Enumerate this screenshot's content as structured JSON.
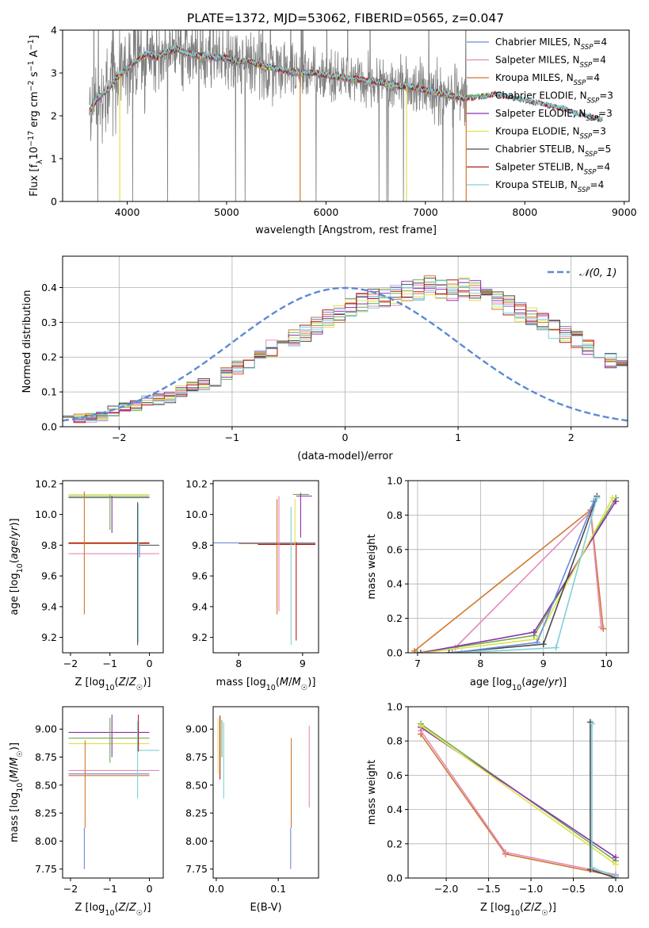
{
  "title": "PLATE=1372, MJD=53062, FIBERID=0565, z=0.047",
  "colors": {
    "Chabrier MILES": "#6a8cd8",
    "Salpeter MILES": "#e58ab8",
    "Kroupa MILES": "#d0782f",
    "Chabrier ELODIE": "#6cb04a",
    "Salpeter ELODIE": "#8e2fb0",
    "Kroupa ELODIE": "#e1e14a",
    "Chabrier STELIB": "#4a4a4a",
    "Salpeter STELIB": "#b01818",
    "Kroupa STELIB": "#7fd0d8",
    "data": "#808080",
    "normal_curve": "#5b8bd6"
  },
  "legend_models": [
    {
      "imf": "Chabrier MILES",
      "nssp": "4"
    },
    {
      "imf": "Salpeter MILES",
      "nssp": "4"
    },
    {
      "imf": "Kroupa MILES",
      "nssp": "4"
    },
    {
      "imf": "Chabrier ELODIE",
      "nssp": "3"
    },
    {
      "imf": "Salpeter ELODIE",
      "nssp": "3"
    },
    {
      "imf": "Kroupa ELODIE",
      "nssp": "3"
    },
    {
      "imf": "Chabrier STELIB",
      "nssp": "5"
    },
    {
      "imf": "Salpeter STELIB",
      "nssp": "4"
    },
    {
      "imf": "Kroupa STELIB",
      "nssp": "4"
    }
  ],
  "chart_data": [
    {
      "id": "spectrum",
      "type": "line",
      "xlabel": "wavelength [Angstrom, rest frame]",
      "ylabel": "Flux [f_λ 10^-17 erg cm^-2 s^-1 A^-1]",
      "xlim": [
        3350,
        9050
      ],
      "ylim": [
        0,
        4
      ],
      "xticks": [
        4000,
        5000,
        6000,
        7000,
        8000,
        9000
      ],
      "yticks": [
        0,
        1,
        2,
        3,
        4
      ],
      "continuum": [
        [
          3620,
          2.1
        ],
        [
          3700,
          2.4
        ],
        [
          3800,
          2.6
        ],
        [
          3900,
          2.9
        ],
        [
          4000,
          3.1
        ],
        [
          4100,
          3.3
        ],
        [
          4200,
          3.45
        ],
        [
          4300,
          3.35
        ],
        [
          4400,
          3.5
        ],
        [
          4500,
          3.55
        ],
        [
          4600,
          3.45
        ],
        [
          4700,
          3.4
        ],
        [
          4800,
          3.4
        ],
        [
          4900,
          3.35
        ],
        [
          5000,
          3.35
        ],
        [
          5100,
          3.25
        ],
        [
          5200,
          3.3
        ],
        [
          5300,
          3.2
        ],
        [
          5400,
          3.15
        ],
        [
          5500,
          3.1
        ],
        [
          5600,
          3.05
        ],
        [
          5700,
          3.0
        ],
        [
          5800,
          3.0
        ],
        [
          5900,
          3.0
        ],
        [
          6000,
          2.95
        ],
        [
          6100,
          2.9
        ],
        [
          6200,
          2.88
        ],
        [
          6300,
          2.85
        ],
        [
          6400,
          2.82
        ],
        [
          6500,
          2.8
        ],
        [
          6600,
          2.75
        ],
        [
          6700,
          2.7
        ],
        [
          6800,
          2.68
        ],
        [
          6900,
          2.65
        ],
        [
          7000,
          2.6
        ],
        [
          7100,
          2.55
        ],
        [
          7200,
          2.5
        ],
        [
          7300,
          2.45
        ],
        [
          7400,
          2.4
        ],
        [
          7500,
          2.42
        ],
        [
          7600,
          2.45
        ],
        [
          7700,
          2.5
        ],
        [
          7800,
          2.45
        ],
        [
          7900,
          2.4
        ],
        [
          8000,
          2.35
        ],
        [
          8100,
          2.3
        ],
        [
          8200,
          2.25
        ],
        [
          8300,
          2.2
        ],
        [
          8400,
          2.15
        ],
        [
          8500,
          2.05
        ],
        [
          8600,
          2.0
        ],
        [
          8700,
          1.95
        ],
        [
          8780,
          1.9
        ]
      ],
      "model_range": [
        3620,
        7420
      ],
      "data_range": [
        3620,
        7420
      ],
      "stelib_range": [
        3620,
        8780
      ]
    },
    {
      "id": "residuals",
      "type": "step",
      "xlabel": "(data-model)/error",
      "ylabel": "Normed distribution",
      "xlim": [
        -2.5,
        2.5
      ],
      "ylim": [
        0,
        0.49
      ],
      "xticks": [
        -2,
        -1,
        0,
        1,
        2
      ],
      "yticks": [
        0.0,
        0.1,
        0.2,
        0.3,
        0.4
      ],
      "legend": "𝒩(0, 1)",
      "bin_edges_start": -2.5,
      "bin_width": 0.1,
      "hist_base": [
        0.025,
        0.024,
        0.026,
        0.03,
        0.045,
        0.055,
        0.06,
        0.075,
        0.08,
        0.085,
        0.1,
        0.115,
        0.12,
        0.13,
        0.15,
        0.17,
        0.19,
        0.21,
        0.225,
        0.24,
        0.255,
        0.27,
        0.29,
        0.31,
        0.325,
        0.345,
        0.355,
        0.365,
        0.37,
        0.38,
        0.39,
        0.395,
        0.41,
        0.4,
        0.395,
        0.405,
        0.39,
        0.38,
        0.365,
        0.35,
        0.33,
        0.32,
        0.3,
        0.28,
        0.265,
        0.25,
        0.23,
        0.21,
        0.19,
        0.175,
        0.16,
        0.145,
        0.125,
        0.11,
        0.095,
        0.085,
        0.08,
        0.075,
        0.065,
        0.06,
        0.055,
        0.05,
        0.045,
        0.04,
        0.035,
        0.03,
        0.028,
        0.025,
        0.022,
        0.02
      ]
    },
    {
      "id": "z-age",
      "type": "errorbar",
      "xlabel": "Z [log10(Z/Z☉)]",
      "ylabel": "age  [log10(age/yr)]",
      "xlim": [
        -2.2,
        0.35
      ],
      "ylim": [
        9.1,
        10.22
      ],
      "xticks": [
        -2,
        -1,
        0
      ],
      "yticks": [
        9.2,
        9.4,
        9.6,
        9.8,
        10.0,
        10.2
      ],
      "hlines": [
        {
          "y": 10.12,
          "x0": -2.05,
          "x1": 0.0,
          "c": "Chabrier ELODIE"
        },
        {
          "y": 10.13,
          "x0": -2.05,
          "x1": 0.0,
          "c": "Kroupa ELODIE"
        },
        {
          "y": 10.11,
          "x0": -2.05,
          "x1": 0.0,
          "c": "Chabrier STELIB"
        },
        {
          "y": 9.81,
          "x0": -2.05,
          "x1": 0.0,
          "c": "Kroupa MILES"
        },
        {
          "y": 9.815,
          "x0": -2.05,
          "x1": 0.0,
          "c": "Salpeter STELIB"
        },
        {
          "y": 9.8,
          "x0": -0.3,
          "x1": 0.25,
          "c": "Chabrier STELIB"
        },
        {
          "y": 9.745,
          "x0": -2.05,
          "x1": 0.25,
          "c": "Salpeter MILES"
        }
      ],
      "vlines": [
        {
          "x": -1.65,
          "y0": 9.35,
          "y1": 10.15,
          "c": "Kroupa MILES"
        },
        {
          "x": -1.0,
          "y0": 9.9,
          "y1": 10.13,
          "c": "Chabrier ELODIE"
        },
        {
          "x": -0.95,
          "y0": 9.88,
          "y1": 10.12,
          "c": "Salpeter ELODIE"
        },
        {
          "x": -0.3,
          "y0": 9.15,
          "y1": 10.08,
          "c": "Chabrier STELIB"
        },
        {
          "x": -0.28,
          "y0": 9.17,
          "y1": 10.07,
          "c": "Kroupa STELIB"
        },
        {
          "x": -0.25,
          "y0": 9.72,
          "y1": 9.82,
          "c": "Chabrier MILES"
        }
      ]
    },
    {
      "id": "mass-age",
      "type": "errorbar",
      "xlabel": "mass [log10(M/M☉)]",
      "ylabel": "",
      "xlim": [
        7.6,
        9.25
      ],
      "ylim": [
        9.1,
        10.22
      ],
      "xticks": [
        8,
        9
      ],
      "yticks": [
        9.2,
        9.4,
        9.6,
        9.8,
        10.0,
        10.2
      ],
      "hlines": [
        {
          "y": 9.815,
          "x0": 7.6,
          "x1": 9.2,
          "c": "Chabrier MILES"
        },
        {
          "y": 9.81,
          "x0": 8.0,
          "x1": 9.2,
          "c": "Kroupa MILES"
        },
        {
          "y": 9.805,
          "x0": 8.3,
          "x1": 9.2,
          "c": "Salpeter STELIB"
        },
        {
          "y": 10.13,
          "x0": 8.85,
          "x1": 9.1,
          "c": "Chabrier ELODIE"
        },
        {
          "y": 10.12,
          "x0": 8.9,
          "x1": 9.15,
          "c": "Salpeter ELODIE"
        }
      ],
      "vlines": [
        {
          "x": 8.6,
          "y0": 9.35,
          "y1": 10.1,
          "c": "Kroupa MILES"
        },
        {
          "x": 8.63,
          "y0": 9.37,
          "y1": 10.12,
          "c": "Salpeter MILES"
        },
        {
          "x": 8.82,
          "y0": 9.15,
          "y1": 10.05,
          "c": "Kroupa STELIB"
        },
        {
          "x": 8.88,
          "y0": 9.8,
          "y1": 10.1,
          "c": "Kroupa ELODIE"
        },
        {
          "x": 8.97,
          "y0": 9.85,
          "y1": 10.14,
          "c": "Salpeter ELODIE"
        },
        {
          "x": 8.9,
          "y0": 9.18,
          "y1": 9.82,
          "c": "Salpeter STELIB"
        }
      ]
    },
    {
      "id": "age-weight",
      "type": "line",
      "xlabel": "age  [log10(age/yr)]",
      "ylabel": "mass weight",
      "xlim": [
        6.85,
        10.35
      ],
      "ylim": [
        0,
        1
      ],
      "xticks": [
        7,
        8,
        9,
        10
      ],
      "yticks": [
        0.0,
        0.2,
        0.4,
        0.6,
        0.8,
        1.0
      ],
      "series": [
        {
          "c": "Kroupa MILES",
          "x": [
            6.95,
            9.75,
            9.95
          ],
          "y": [
            0.01,
            0.83,
            0.14
          ]
        },
        {
          "c": "Salpeter MILES",
          "x": [
            7.6,
            9.75,
            9.92
          ],
          "y": [
            0.03,
            0.82,
            0.15
          ]
        },
        {
          "c": "Chabrier ELODIE",
          "x": [
            7.0,
            8.85,
            10.15
          ],
          "y": [
            0.0,
            0.1,
            0.9
          ]
        },
        {
          "c": "Salpeter ELODIE",
          "x": [
            7.05,
            8.85,
            10.15
          ],
          "y": [
            0.0,
            0.12,
            0.88
          ]
        },
        {
          "c": "Kroupa ELODIE",
          "x": [
            7.1,
            8.9,
            10.1
          ],
          "y": [
            0.0,
            0.08,
            0.9
          ]
        },
        {
          "c": "Chabrier STELIB",
          "x": [
            7.5,
            9.0,
            9.85
          ],
          "y": [
            0.0,
            0.05,
            0.91
          ]
        },
        {
          "c": "Kroupa STELIB",
          "x": [
            7.7,
            9.2,
            9.85
          ],
          "y": [
            0.0,
            0.03,
            0.9
          ]
        },
        {
          "c": "Chabrier MILES",
          "x": [
            7.55,
            8.9,
            9.8
          ],
          "y": [
            0.0,
            0.06,
            0.88
          ]
        }
      ]
    },
    {
      "id": "z-mass",
      "type": "errorbar",
      "xlabel": "Z [log10(Z/Z☉)]",
      "ylabel": "mass [log10(M/M☉)]",
      "xlim": [
        -2.2,
        0.35
      ],
      "ylim": [
        7.67,
        9.2
      ],
      "xticks": [
        -2,
        -1,
        0
      ],
      "yticks": [
        7.75,
        8.0,
        8.25,
        8.5,
        8.75,
        9.0
      ],
      "hlines": [
        {
          "y": 8.97,
          "x0": -2.05,
          "x1": 0.0,
          "c": "Salpeter ELODIE"
        },
        {
          "y": 8.92,
          "x0": -2.05,
          "x1": 0.0,
          "c": "Chabrier ELODIE"
        },
        {
          "y": 8.87,
          "x0": -2.05,
          "x1": 0.0,
          "c": "Kroupa ELODIE"
        },
        {
          "y": 8.81,
          "x0": -0.3,
          "x1": 0.25,
          "c": "Kroupa STELIB"
        },
        {
          "y": 8.63,
          "x0": -2.05,
          "x1": 0.25,
          "c": "Salpeter MILES"
        },
        {
          "y": 8.6,
          "x0": -2.05,
          "x1": 0.0,
          "c": "Chabrier MILES"
        },
        {
          "y": 8.585,
          "x0": -2.05,
          "x1": 0.0,
          "c": "Kroupa MILES"
        }
      ],
      "vlines": [
        {
          "x": -1.65,
          "y0": 7.75,
          "y1": 8.12,
          "c": "Chabrier MILES"
        },
        {
          "x": -1.63,
          "y0": 8.12,
          "y1": 8.9,
          "c": "Kroupa MILES"
        },
        {
          "x": -1.0,
          "y0": 8.7,
          "y1": 9.1,
          "c": "Chabrier ELODIE"
        },
        {
          "x": -0.95,
          "y0": 8.75,
          "y1": 9.13,
          "c": "Salpeter ELODIE"
        },
        {
          "x": -0.3,
          "y0": 8.38,
          "y1": 9.07,
          "c": "Kroupa STELIB"
        },
        {
          "x": -0.28,
          "y0": 8.8,
          "y1": 9.13,
          "c": "Salpeter STELIB"
        }
      ]
    },
    {
      "id": "ebv-mass",
      "type": "errorbar",
      "xlabel": "E(B-V)",
      "ylabel": "",
      "xlim": [
        -0.005,
        0.165
      ],
      "ylim": [
        7.67,
        9.2
      ],
      "xticks": [
        0.0,
        0.1
      ],
      "yticks": [
        7.75,
        8.0,
        8.25,
        8.5,
        8.75,
        9.0
      ],
      "hlines": [],
      "vlines": [
        {
          "x": 0.003,
          "y0": 8.6,
          "y1": 9.1,
          "c": "Kroupa ELODIE"
        },
        {
          "x": 0.006,
          "y0": 8.55,
          "y1": 9.12,
          "c": "Salpeter STELIB"
        },
        {
          "x": 0.009,
          "y0": 8.75,
          "y1": 9.08,
          "c": "Chabrier ELODIE"
        },
        {
          "x": 0.012,
          "y0": 8.38,
          "y1": 9.06,
          "c": "Kroupa STELIB"
        },
        {
          "x": 0.12,
          "y0": 7.75,
          "y1": 8.12,
          "c": "Chabrier MILES"
        },
        {
          "x": 0.121,
          "y0": 8.12,
          "y1": 8.92,
          "c": "Kroupa MILES"
        },
        {
          "x": 0.15,
          "y0": 8.3,
          "y1": 9.03,
          "c": "Salpeter MILES"
        }
      ]
    },
    {
      "id": "z-weight",
      "type": "line",
      "xlabel": "Z [log10(Z/Z☉)]",
      "ylabel": "mass weight",
      "xlim": [
        -2.45,
        0.15
      ],
      "ylim": [
        0,
        1
      ],
      "xticks": [
        -2.0,
        -1.5,
        -1.0,
        -0.5,
        0.0
      ],
      "yticks": [
        0.0,
        0.2,
        0.4,
        0.6,
        0.8,
        1.0
      ],
      "series": [
        {
          "c": "Kroupa MILES",
          "x": [
            -2.3,
            -1.3,
            0.0
          ],
          "y": [
            0.84,
            0.14,
            0.01
          ]
        },
        {
          "c": "Salpeter MILES",
          "x": [
            -2.3,
            -1.3,
            0.0
          ],
          "y": [
            0.86,
            0.15,
            0.02
          ]
        },
        {
          "c": "Chabrier ELODIE",
          "x": [
            -2.3,
            0.0
          ],
          "y": [
            0.9,
            0.1
          ]
        },
        {
          "c": "Salpeter ELODIE",
          "x": [
            -2.3,
            0.0
          ],
          "y": [
            0.88,
            0.12
          ]
        },
        {
          "c": "Kroupa ELODIE",
          "x": [
            -2.3,
            0.0
          ],
          "y": [
            0.89,
            0.08
          ]
        },
        {
          "c": "Chabrier STELIB",
          "x": [
            -0.3,
            -0.3,
            0.0
          ],
          "y": [
            0.91,
            0.05,
            0.0
          ]
        },
        {
          "c": "Kroupa STELIB",
          "x": [
            -0.28,
            -0.28,
            0.0
          ],
          "y": [
            0.9,
            0.06,
            0.01
          ]
        }
      ]
    }
  ]
}
